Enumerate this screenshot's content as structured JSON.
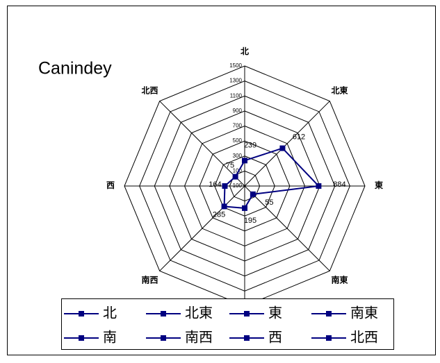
{
  "chart_data": {
    "type": "radar",
    "title": "Canindey",
    "categories": [
      "北",
      "北東",
      "東",
      "南東",
      "南",
      "南西",
      "西",
      "北西"
    ],
    "values": [
      239,
      612,
      884,
      55,
      195,
      285,
      164,
      75
    ],
    "color": "#000080",
    "ylim": [
      -100,
      1500
    ],
    "yticks": [
      -100,
      100,
      300,
      500,
      700,
      900,
      1100,
      1300,
      1500
    ],
    "grid": true,
    "legend": "bottom"
  }
}
